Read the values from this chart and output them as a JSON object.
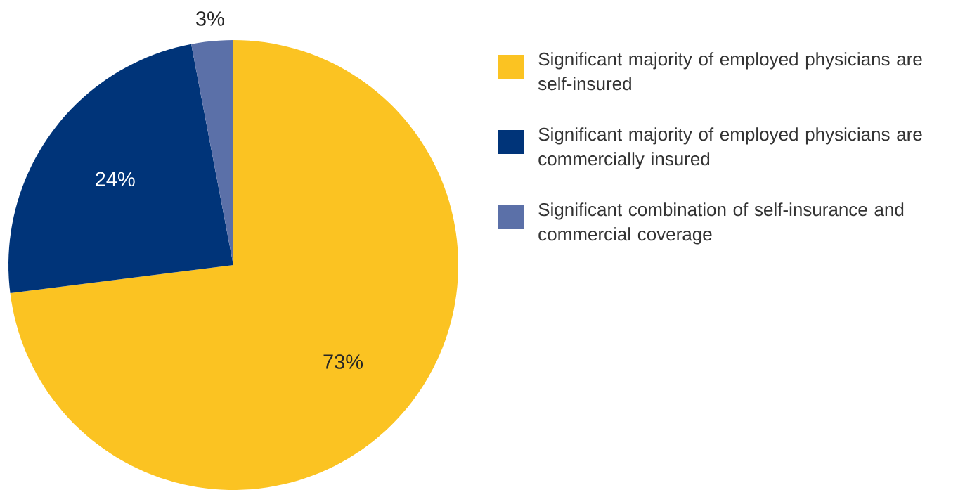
{
  "chart_data": {
    "type": "pie",
    "categories": [
      "Significant majority of employed physicians are self-insured",
      "Significant majority of employed physicians are commercially insured",
      "Significant combination of self-insurance and commercial coverage"
    ],
    "values": [
      73,
      24,
      3
    ],
    "colors": [
      "#fbc322",
      "#003479",
      "#5b70a8"
    ],
    "value_labels": [
      "73%",
      "24%",
      "3%"
    ],
    "legend": "right"
  }
}
